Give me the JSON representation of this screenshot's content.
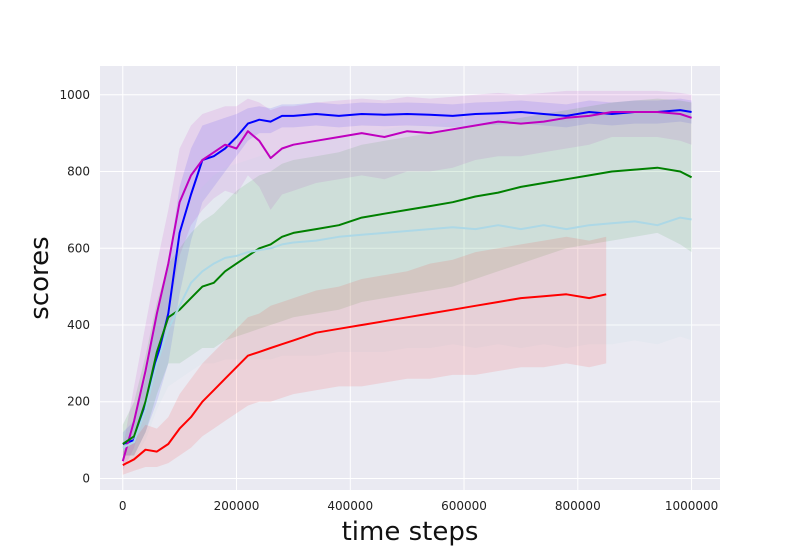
{
  "chart_data": {
    "type": "line",
    "title": "",
    "xlabel": "time steps",
    "ylabel": "scores",
    "xlim": [
      -40000,
      1050000
    ],
    "ylim": [
      -30,
      1075
    ],
    "xticks": [
      0,
      200000,
      400000,
      600000,
      800000,
      1000000
    ],
    "xtick_labels": [
      "0",
      "200000",
      "400000",
      "600000",
      "800000",
      "1000000"
    ],
    "yticks": [
      0,
      200,
      400,
      600,
      800,
      1000
    ],
    "ytick_labels": [
      "0",
      "200",
      "400",
      "600",
      "800",
      "1000"
    ],
    "grid": true,
    "legend": "none",
    "colors": {
      "background": "#eaeaf2",
      "grid": "#ffffff"
    },
    "series": [
      {
        "color": "#0000ff",
        "x": [
          0,
          20000,
          40000,
          60000,
          80000,
          100000,
          120000,
          140000,
          160000,
          180000,
          200000,
          220000,
          240000,
          260000,
          280000,
          300000,
          340000,
          380000,
          420000,
          460000,
          500000,
          540000,
          580000,
          620000,
          660000,
          700000,
          740000,
          780000,
          820000,
          860000,
          900000,
          940000,
          980000,
          1000000
        ],
        "y": [
          90,
          100,
          190,
          310,
          430,
          640,
          740,
          830,
          840,
          860,
          890,
          925,
          935,
          930,
          945,
          945,
          950,
          945,
          950,
          948,
          950,
          948,
          945,
          950,
          952,
          955,
          950,
          945,
          955,
          950,
          955,
          955,
          960,
          955
        ],
        "band": [
          [
            60,
            120
          ],
          [
            60,
            150
          ],
          [
            120,
            260
          ],
          [
            200,
            420
          ],
          [
            300,
            560
          ],
          [
            480,
            760
          ],
          [
            620,
            860
          ],
          [
            720,
            920
          ],
          [
            760,
            930
          ],
          [
            800,
            940
          ],
          [
            840,
            950
          ],
          [
            880,
            965
          ],
          [
            900,
            970
          ],
          [
            900,
            965
          ],
          [
            915,
            975
          ],
          [
            915,
            975
          ],
          [
            920,
            980
          ],
          [
            915,
            975
          ],
          [
            920,
            980
          ],
          [
            918,
            978
          ],
          [
            920,
            980
          ],
          [
            918,
            978
          ],
          [
            915,
            975
          ],
          [
            920,
            980
          ],
          [
            922,
            982
          ],
          [
            925,
            985
          ],
          [
            920,
            980
          ],
          [
            915,
            975
          ],
          [
            925,
            985
          ],
          [
            920,
            980
          ],
          [
            925,
            985
          ],
          [
            925,
            985
          ],
          [
            930,
            990
          ],
          [
            925,
            985
          ]
        ]
      },
      {
        "color": "#bf00bf",
        "x": [
          0,
          20000,
          40000,
          60000,
          80000,
          100000,
          120000,
          140000,
          160000,
          180000,
          200000,
          220000,
          240000,
          260000,
          280000,
          300000,
          340000,
          380000,
          420000,
          460000,
          500000,
          540000,
          580000,
          620000,
          660000,
          700000,
          740000,
          780000,
          820000,
          860000,
          900000,
          940000,
          980000,
          1000000
        ],
        "y": [
          45,
          150,
          280,
          430,
          560,
          720,
          790,
          830,
          850,
          870,
          860,
          905,
          880,
          835,
          860,
          870,
          880,
          890,
          900,
          890,
          905,
          900,
          910,
          920,
          930,
          925,
          930,
          940,
          945,
          955,
          955,
          955,
          950,
          940
        ],
        "band": [
          [
            20,
            80
          ],
          [
            80,
            240
          ],
          [
            180,
            400
          ],
          [
            300,
            560
          ],
          [
            420,
            700
          ],
          [
            580,
            860
          ],
          [
            660,
            920
          ],
          [
            700,
            950
          ],
          [
            730,
            960
          ],
          [
            750,
            970
          ],
          [
            740,
            970
          ],
          [
            790,
            990
          ],
          [
            760,
            980
          ],
          [
            700,
            960
          ],
          [
            740,
            970
          ],
          [
            750,
            970
          ],
          [
            770,
            980
          ],
          [
            780,
            985
          ],
          [
            790,
            990
          ],
          [
            780,
            985
          ],
          [
            800,
            995
          ],
          [
            800,
            990
          ],
          [
            810,
            995
          ],
          [
            830,
            1000
          ],
          [
            840,
            1005
          ],
          [
            840,
            1000
          ],
          [
            850,
            1005
          ],
          [
            860,
            1010
          ],
          [
            870,
            1010
          ],
          [
            890,
            1010
          ],
          [
            890,
            1010
          ],
          [
            890,
            1010
          ],
          [
            880,
            1005
          ],
          [
            870,
            1000
          ]
        ]
      },
      {
        "color": "#008000",
        "x": [
          0,
          20000,
          40000,
          60000,
          80000,
          100000,
          120000,
          140000,
          160000,
          180000,
          200000,
          220000,
          240000,
          260000,
          280000,
          300000,
          340000,
          380000,
          420000,
          460000,
          500000,
          540000,
          580000,
          620000,
          660000,
          700000,
          740000,
          780000,
          820000,
          860000,
          900000,
          940000,
          980000,
          1000000
        ],
        "y": [
          90,
          110,
          200,
          330,
          420,
          440,
          470,
          500,
          510,
          540,
          560,
          580,
          600,
          610,
          630,
          640,
          650,
          660,
          680,
          690,
          700,
          710,
          720,
          735,
          745,
          760,
          770,
          780,
          790,
          800,
          805,
          810,
          800,
          785
        ],
        "band": [
          [
            60,
            140
          ],
          [
            60,
            200
          ],
          [
            120,
            320
          ],
          [
            220,
            460
          ],
          [
            300,
            560
          ],
          [
            300,
            600
          ],
          [
            320,
            640
          ],
          [
            340,
            670
          ],
          [
            340,
            690
          ],
          [
            360,
            720
          ],
          [
            370,
            750
          ],
          [
            380,
            770
          ],
          [
            390,
            790
          ],
          [
            400,
            800
          ],
          [
            410,
            820
          ],
          [
            420,
            830
          ],
          [
            430,
            840
          ],
          [
            440,
            850
          ],
          [
            460,
            870
          ],
          [
            470,
            880
          ],
          [
            480,
            890
          ],
          [
            490,
            900
          ],
          [
            500,
            910
          ],
          [
            520,
            920
          ],
          [
            540,
            930
          ],
          [
            560,
            940
          ],
          [
            580,
            950
          ],
          [
            600,
            960
          ],
          [
            610,
            970
          ],
          [
            620,
            980
          ],
          [
            630,
            985
          ],
          [
            640,
            990
          ],
          [
            610,
            985
          ],
          [
            590,
            980
          ]
        ]
      },
      {
        "color": "#add8e6",
        "x": [
          0,
          20000,
          40000,
          60000,
          80000,
          100000,
          120000,
          140000,
          160000,
          180000,
          200000,
          220000,
          240000,
          260000,
          280000,
          300000,
          340000,
          380000,
          420000,
          460000,
          500000,
          540000,
          580000,
          620000,
          660000,
          700000,
          740000,
          780000,
          820000,
          860000,
          900000,
          940000,
          980000,
          1000000
        ],
        "y": [
          80,
          95,
          180,
          300,
          390,
          450,
          510,
          540,
          560,
          575,
          580,
          590,
          595,
          600,
          610,
          615,
          620,
          630,
          635,
          640,
          645,
          650,
          655,
          650,
          660,
          650,
          660,
          650,
          660,
          665,
          670,
          660,
          680,
          675
        ],
        "band": [
          [
            50,
            120
          ],
          [
            50,
            160
          ],
          [
            100,
            290
          ],
          [
            180,
            440
          ],
          [
            240,
            560
          ],
          [
            260,
            650
          ],
          [
            280,
            720
          ],
          [
            300,
            760
          ],
          [
            300,
            790
          ],
          [
            310,
            810
          ],
          [
            310,
            820
          ],
          [
            310,
            830
          ],
          [
            310,
            840
          ],
          [
            310,
            850
          ],
          [
            320,
            860
          ],
          [
            320,
            870
          ],
          [
            320,
            880
          ],
          [
            330,
            890
          ],
          [
            330,
            900
          ],
          [
            330,
            910
          ],
          [
            340,
            920
          ],
          [
            340,
            920
          ],
          [
            350,
            930
          ],
          [
            340,
            930
          ],
          [
            350,
            940
          ],
          [
            340,
            930
          ],
          [
            350,
            940
          ],
          [
            340,
            930
          ],
          [
            350,
            940
          ],
          [
            350,
            950
          ],
          [
            360,
            960
          ],
          [
            350,
            950
          ],
          [
            370,
            970
          ],
          [
            360,
            960
          ]
        ]
      },
      {
        "color": "#ff0000",
        "x": [
          0,
          20000,
          40000,
          60000,
          80000,
          100000,
          120000,
          140000,
          160000,
          180000,
          200000,
          220000,
          240000,
          260000,
          280000,
          300000,
          340000,
          380000,
          420000,
          460000,
          500000,
          540000,
          580000,
          620000,
          660000,
          700000,
          740000,
          780000,
          820000,
          850000
        ],
        "y": [
          35,
          50,
          75,
          70,
          90,
          130,
          160,
          200,
          230,
          260,
          290,
          320,
          330,
          340,
          350,
          360,
          380,
          390,
          400,
          410,
          420,
          430,
          440,
          450,
          460,
          470,
          475,
          480,
          470,
          480
        ],
        "band": [
          [
            10,
            70
          ],
          [
            20,
            100
          ],
          [
            30,
            140
          ],
          [
            30,
            130
          ],
          [
            40,
            160
          ],
          [
            60,
            220
          ],
          [
            80,
            260
          ],
          [
            110,
            300
          ],
          [
            130,
            330
          ],
          [
            150,
            360
          ],
          [
            170,
            390
          ],
          [
            190,
            420
          ],
          [
            200,
            430
          ],
          [
            200,
            450
          ],
          [
            210,
            460
          ],
          [
            220,
            470
          ],
          [
            230,
            490
          ],
          [
            240,
            500
          ],
          [
            240,
            520
          ],
          [
            250,
            530
          ],
          [
            260,
            540
          ],
          [
            260,
            560
          ],
          [
            270,
            570
          ],
          [
            270,
            590
          ],
          [
            280,
            600
          ],
          [
            290,
            610
          ],
          [
            290,
            620
          ],
          [
            300,
            630
          ],
          [
            290,
            620
          ],
          [
            300,
            630
          ]
        ]
      }
    ]
  }
}
